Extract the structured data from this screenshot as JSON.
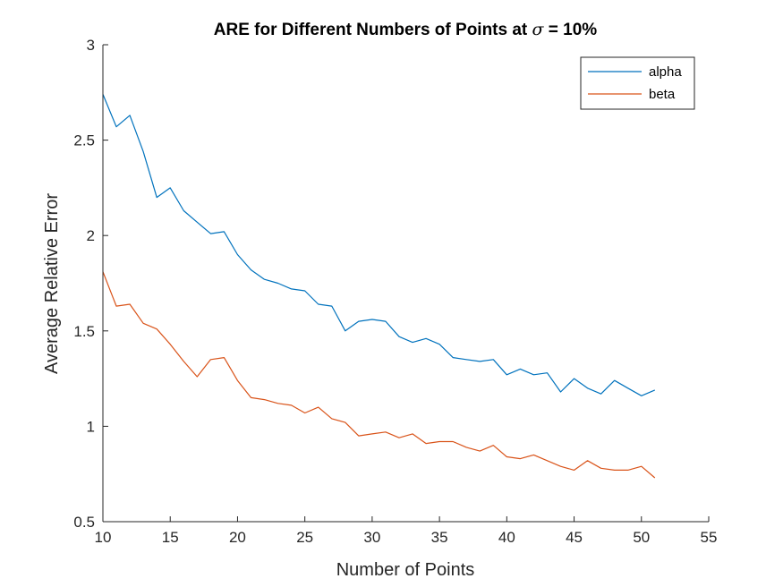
{
  "chart_data": {
    "type": "line",
    "title_prefix": "ARE for Different Numbers of Points at ",
    "title_symbol": "σ",
    "title_suffix": " = 10%",
    "xlabel": "Number of Points",
    "ylabel": "Average Relative Error",
    "xlim": [
      10,
      55
    ],
    "ylim": [
      0.5,
      3
    ],
    "xticks": [
      10,
      15,
      20,
      25,
      30,
      35,
      40,
      45,
      50,
      55
    ],
    "yticks": [
      0.5,
      1,
      1.5,
      2,
      2.5,
      3
    ],
    "xtick_labels": [
      "10",
      "15",
      "20",
      "25",
      "30",
      "35",
      "40",
      "45",
      "50",
      "55"
    ],
    "ytick_labels": [
      "0.5",
      "1",
      "1.5",
      "2",
      "2.5",
      "3"
    ],
    "grid": false,
    "legend_position": "top-right",
    "x": [
      10,
      11,
      12,
      13,
      14,
      15,
      16,
      17,
      18,
      19,
      20,
      21,
      22,
      23,
      24,
      25,
      26,
      27,
      28,
      29,
      30,
      31,
      32,
      33,
      34,
      35,
      36,
      37,
      38,
      39,
      40,
      41,
      42,
      43,
      44,
      45,
      46,
      47,
      48,
      49,
      50,
      51
    ],
    "series": [
      {
        "name": "alpha",
        "color": "#0072BD",
        "values": [
          2.74,
          2.57,
          2.63,
          2.44,
          2.2,
          2.25,
          2.13,
          2.07,
          2.01,
          2.02,
          1.9,
          1.82,
          1.77,
          1.75,
          1.72,
          1.71,
          1.64,
          1.63,
          1.5,
          1.55,
          1.56,
          1.55,
          1.47,
          1.44,
          1.46,
          1.43,
          1.36,
          1.35,
          1.34,
          1.35,
          1.27,
          1.3,
          1.27,
          1.28,
          1.18,
          1.25,
          1.2,
          1.17,
          1.24,
          1.2,
          1.16,
          1.19
        ]
      },
      {
        "name": "beta",
        "color": "#D95319",
        "values": [
          1.81,
          1.63,
          1.64,
          1.54,
          1.51,
          1.43,
          1.34,
          1.26,
          1.35,
          1.36,
          1.24,
          1.15,
          1.14,
          1.12,
          1.11,
          1.07,
          1.1,
          1.04,
          1.02,
          0.95,
          0.96,
          0.97,
          0.94,
          0.96,
          0.91,
          0.92,
          0.92,
          0.89,
          0.87,
          0.9,
          0.84,
          0.83,
          0.85,
          0.82,
          0.79,
          0.77,
          0.82,
          0.78,
          0.77,
          0.77,
          0.79,
          0.73
        ]
      }
    ]
  }
}
